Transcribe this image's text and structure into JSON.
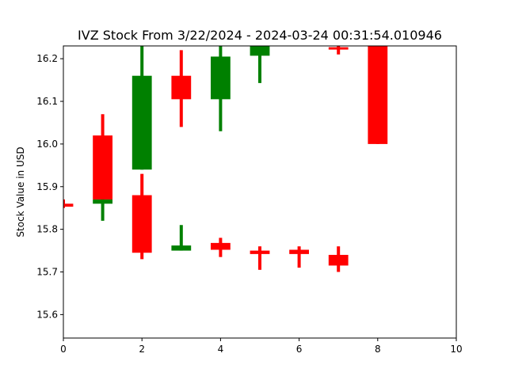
{
  "chart_data": {
    "type": "candlestick",
    "title": "IVZ Stock From 3/22/2024 - 2024-03-24 00:31:54.010946",
    "xlabel": "",
    "ylabel": "Stock Value in USD",
    "xlim": [
      0,
      10
    ],
    "ylim": [
      15.545,
      16.23
    ],
    "x_ticks": [
      0,
      2,
      4,
      6,
      8,
      10
    ],
    "y_ticks": [
      15.6,
      15.7,
      15.8,
      15.9,
      16.0,
      16.1,
      16.2
    ],
    "grid": false,
    "colors": {
      "up": "#008000",
      "down": "#ff0000"
    },
    "candles": [
      {
        "x": 0,
        "open": 15.86,
        "close": 15.853,
        "high": 15.87,
        "low": 15.85
      },
      {
        "x": 1,
        "open": 15.86,
        "close": 15.87,
        "high": 15.88,
        "low": 15.82
      },
      {
        "x": 1,
        "open": 16.02,
        "close": 15.87,
        "high": 16.07,
        "low": 15.87
      },
      {
        "x": 2,
        "open": 15.94,
        "close": 16.16,
        "high": 16.23,
        "low": 15.94
      },
      {
        "x": 2,
        "open": 15.88,
        "close": 15.745,
        "high": 15.93,
        "low": 15.73
      },
      {
        "x": 3,
        "open": 16.16,
        "close": 16.105,
        "high": 16.22,
        "low": 16.04
      },
      {
        "x": 3,
        "open": 15.75,
        "close": 15.762,
        "high": 15.81,
        "low": 15.75
      },
      {
        "x": 4,
        "open": 16.105,
        "close": 16.205,
        "high": 16.23,
        "low": 16.03
      },
      {
        "x": 4,
        "open": 15.768,
        "close": 15.752,
        "high": 15.78,
        "low": 15.735
      },
      {
        "x": 5,
        "open": 16.207,
        "close": 16.23,
        "high": 16.23,
        "low": 16.143
      },
      {
        "x": 5,
        "open": 15.75,
        "close": 15.742,
        "high": 15.76,
        "low": 15.705
      },
      {
        "x": 6,
        "open": 15.752,
        "close": 15.742,
        "high": 15.76,
        "low": 15.71
      },
      {
        "x": 7,
        "open": 16.227,
        "close": 16.223,
        "high": 16.23,
        "low": 16.21
      },
      {
        "x": 7,
        "open": 15.74,
        "close": 15.715,
        "high": 15.76,
        "low": 15.7
      },
      {
        "x": 8,
        "open": 16.23,
        "close": 16.0,
        "high": 16.23,
        "low": 16.0
      }
    ]
  }
}
